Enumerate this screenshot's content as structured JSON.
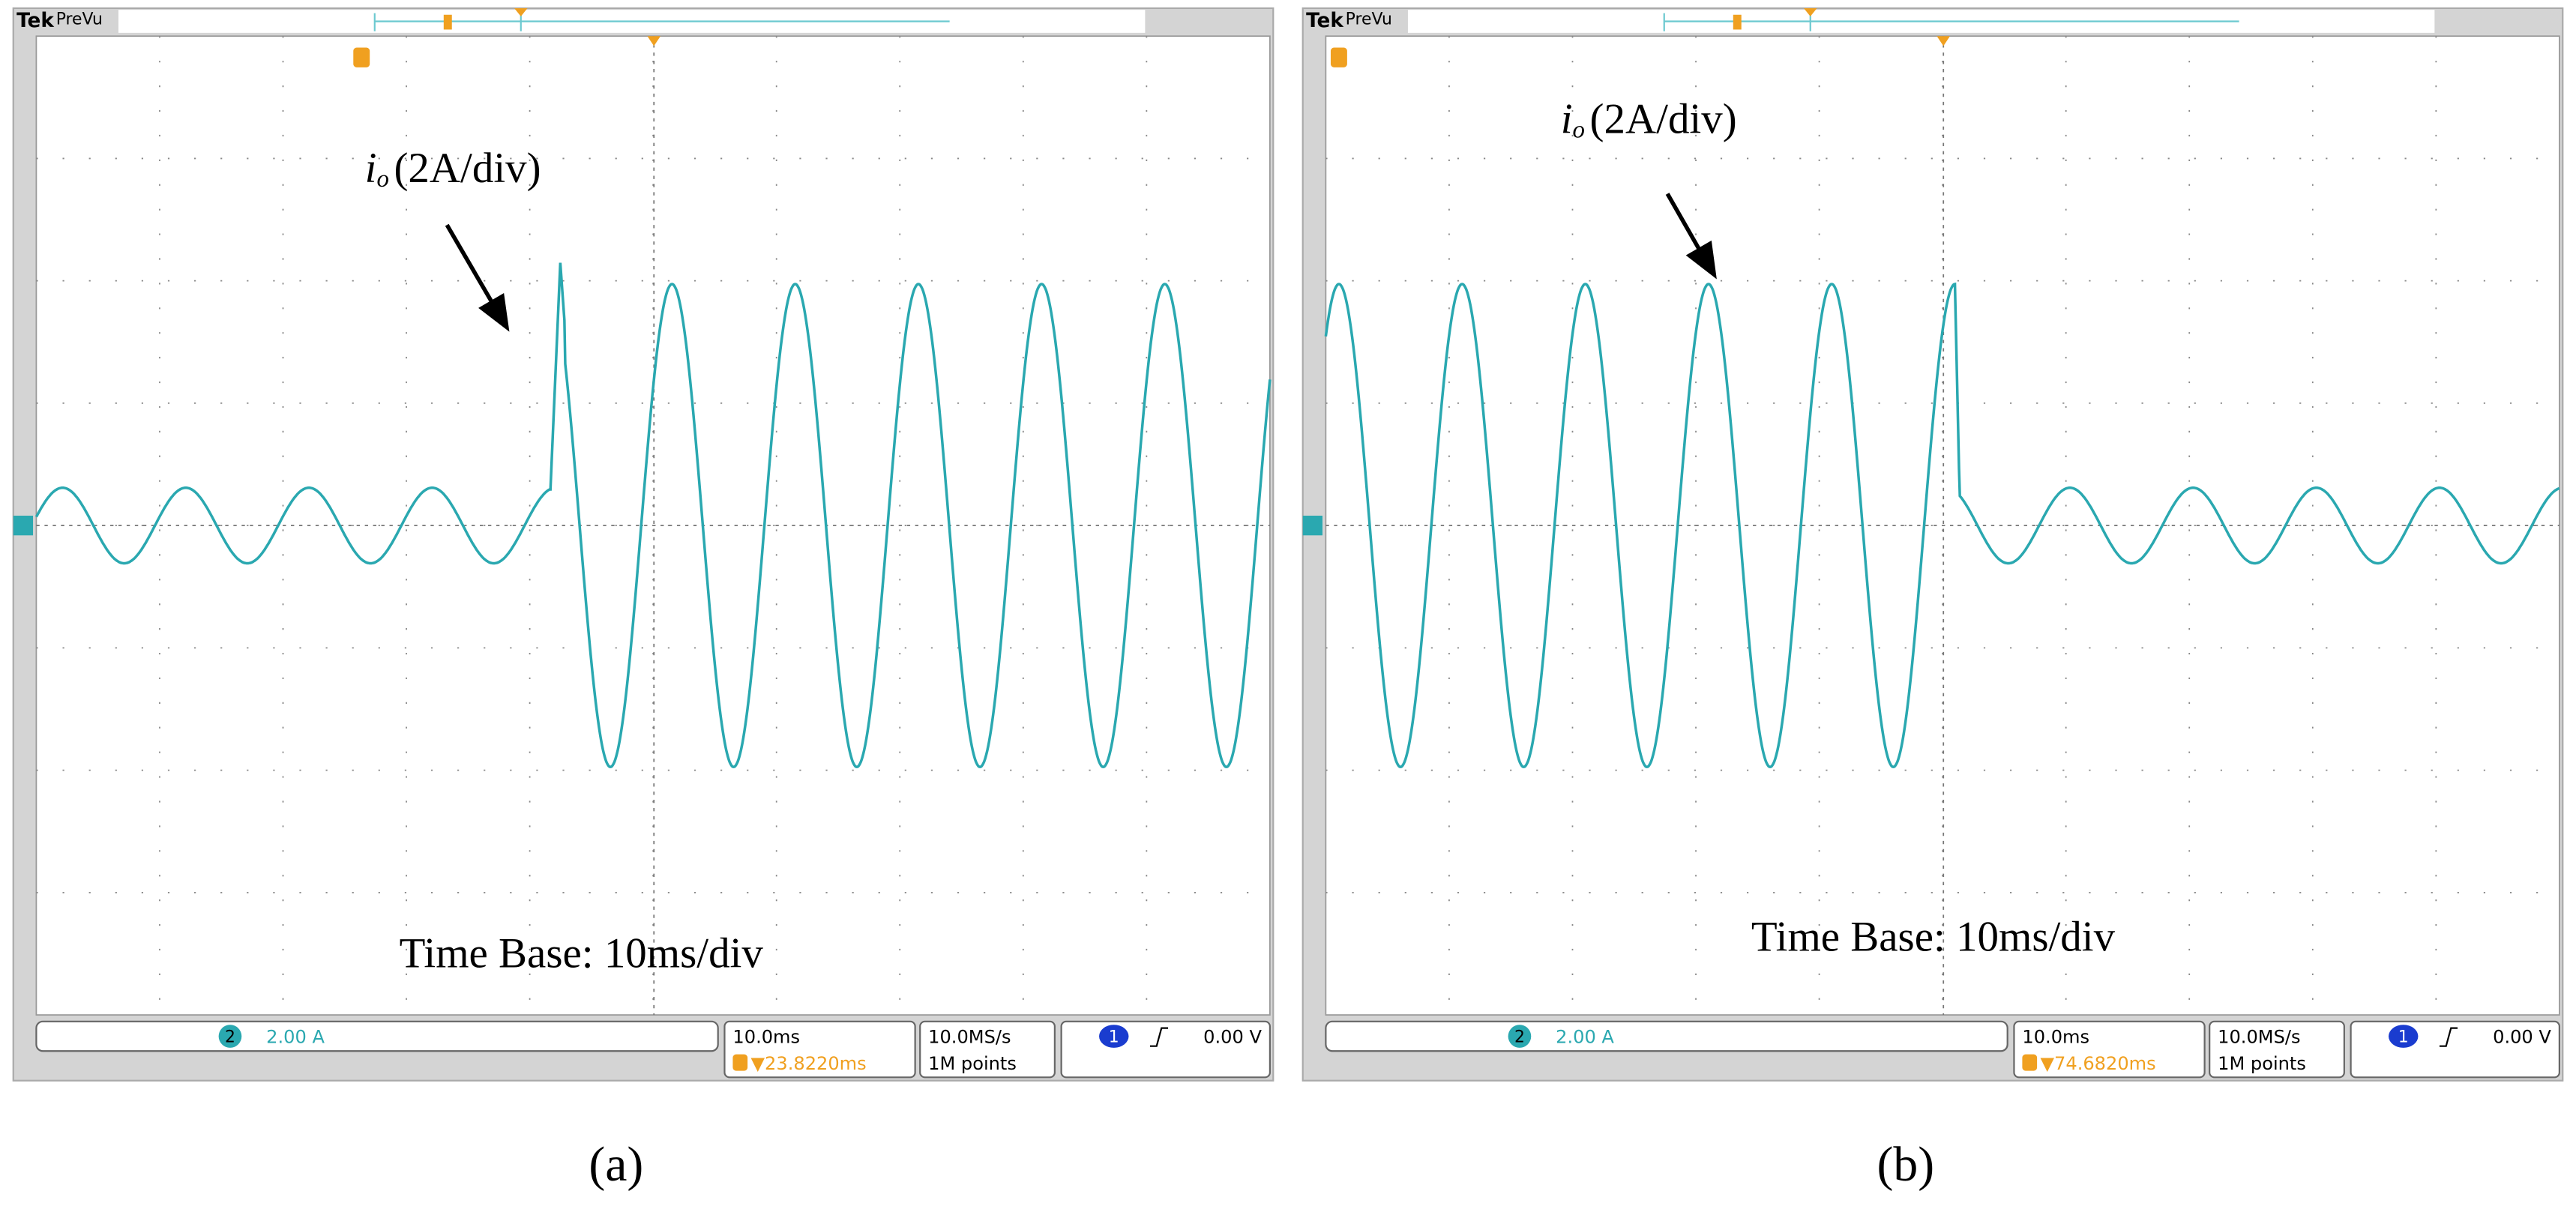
{
  "panels": [
    {
      "header": {
        "brand": "Tek",
        "mode": "PreVu"
      },
      "annotation": {
        "symbol": "i",
        "subscript": "o",
        "scale": "(2A/div)"
      },
      "time_base": "Time Base: 10ms/div",
      "status": {
        "channel": "2",
        "volts_per_div": "2.00 A",
        "time_per_div": "10.0ms",
        "trigger_position": "▼23.8220ms",
        "sample_rate": "10.0MS/s",
        "record_length": "1M points",
        "trigger_channel": "1",
        "trigger_level": "0.00 V"
      },
      "caption": "(a)"
    },
    {
      "header": {
        "brand": "Tek",
        "mode": "PreVu"
      },
      "annotation": {
        "symbol": "i",
        "subscript": "o",
        "scale": "(2A/div)"
      },
      "time_base": "Time Base: 10ms/div",
      "status": {
        "channel": "2",
        "volts_per_div": "2.00 A",
        "time_per_div": "10.0ms",
        "trigger_position": "▼74.6820ms",
        "sample_rate": "10.0MS/s",
        "record_length": "1M points",
        "trigger_channel": "1",
        "trigger_level": "0.00 V"
      },
      "caption": "(b)"
    }
  ]
}
